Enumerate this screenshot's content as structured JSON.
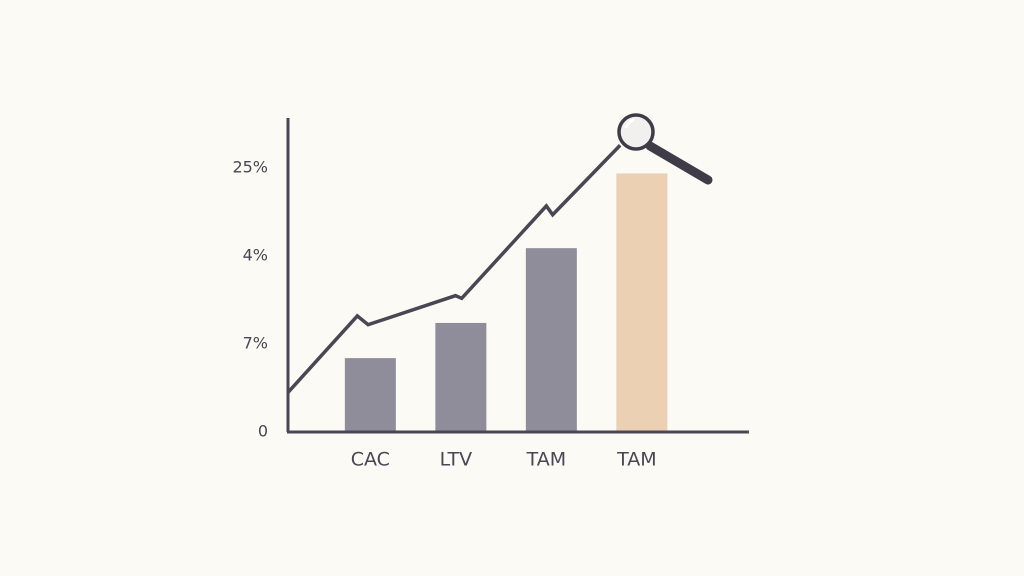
{
  "chart_data": {
    "type": "bar-line",
    "categories": [
      "CAC",
      "LTV",
      "TAM",
      "TAM"
    ],
    "values": [
      0.84,
      1.24,
      2.09,
      2.94
    ],
    "colors": [
      "#8f8d9a",
      "#8f8d9a",
      "#8f8d9a",
      "#ebd0b3"
    ],
    "y_axis_labels": [
      "25%",
      "4%",
      "7%",
      "0"
    ],
    "ylim": [
      0,
      3.57
    ],
    "xlim": [
      0,
      5.11
    ],
    "line": {
      "x": [
        0,
        0.77,
        0.89,
        1.86,
        1.93,
        2.87,
        2.94,
        3.69
      ],
      "values": [
        0.45,
        1.32,
        1.22,
        1.55,
        1.52,
        2.57,
        2.47,
        3.26
      ],
      "color": "#4a4653"
    }
  }
}
